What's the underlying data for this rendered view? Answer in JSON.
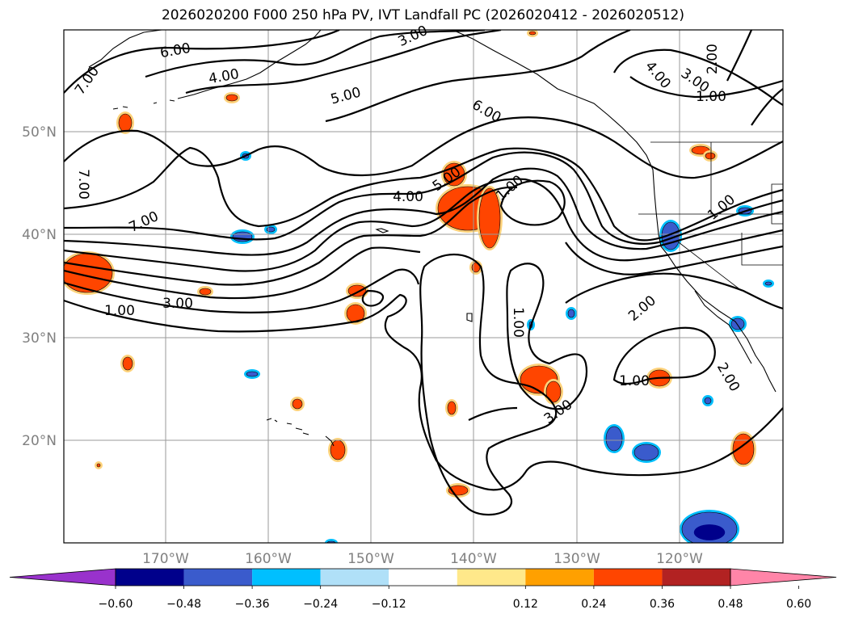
{
  "title": "2026020200 F000 250 hPa PV, IVT Landfall PC (2026020412 - 2026020512)",
  "axes": {
    "lat_labels": [
      "50°N",
      "40°N",
      "30°N",
      "20°N"
    ],
    "lon_labels": [
      "170°W",
      "160°W",
      "150°W",
      "140°W",
      "130°W",
      "120°W"
    ]
  },
  "contour_labels": [
    "7.00",
    "6.00",
    "4.00",
    "3.00",
    "5.00",
    "6.00",
    "4.00",
    "3.00",
    "2.00",
    "1.00",
    "7.00",
    "7.00",
    "4.00",
    "5.00",
    "1.00",
    "1.00",
    "3.00",
    "1.00",
    "2.00",
    "1.00",
    "2.00",
    "3.00",
    "1.00"
  ],
  "colorbar": {
    "ticks": [
      "−0.60",
      "−0.48",
      "−0.36",
      "−0.24",
      "−0.12",
      "0.12",
      "0.24",
      "0.36",
      "0.48",
      "0.60"
    ],
    "colors": [
      "#9932cc",
      "#00008b",
      "#3a5bcc",
      "#00bfff",
      "#b0e0f8",
      "#ffffff",
      "#ffe88a",
      "#ffa000",
      "#ff4500",
      "#b22222",
      "#ff85a8"
    ]
  },
  "anomaly_colors": {
    "pos_outer": "#ffd27a",
    "pos_inner": "#ff4500",
    "neg_outer": "#00bfff",
    "neg_inner": "#3a5bcc",
    "neg_core": "#00008b"
  }
}
